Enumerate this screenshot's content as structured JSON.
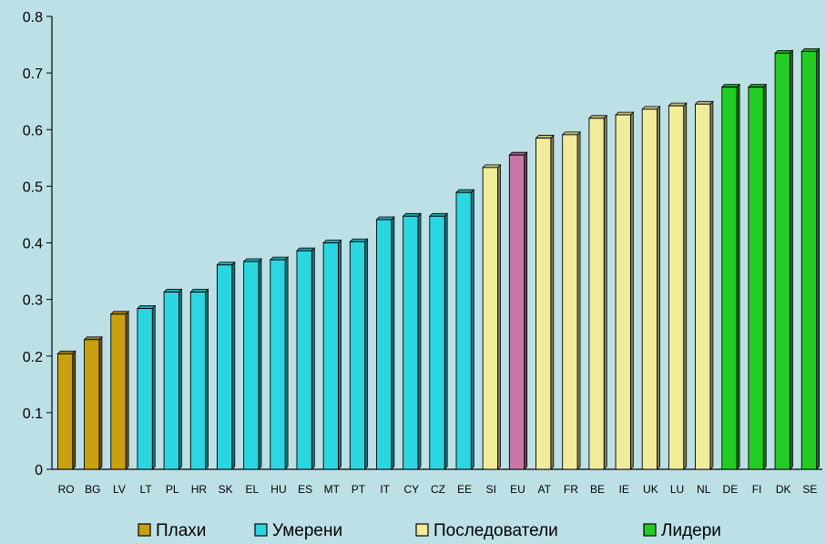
{
  "chart_data": {
    "type": "bar",
    "ylim": [
      0,
      0.8
    ],
    "y_ticks": [
      0,
      0.1,
      0.2,
      0.3,
      0.4,
      0.5,
      0.6,
      0.7,
      0.8
    ],
    "y_tick_labels": [
      "0",
      "0.1",
      "0.2",
      "0.3",
      "0.4",
      "0.5",
      "0.6",
      "0.7",
      "0.8"
    ],
    "grid": false,
    "legend_position": "bottom",
    "categories": [
      "RO",
      "BG",
      "LV",
      "LT",
      "PL",
      "HR",
      "SK",
      "EL",
      "HU",
      "ES",
      "MT",
      "PT",
      "IT",
      "CY",
      "CZ",
      "EE",
      "SI",
      "EU",
      "AT",
      "FR",
      "BE",
      "IE",
      "UK",
      "LU",
      "NL",
      "DE",
      "FI",
      "DK",
      "SE"
    ],
    "values": [
      0.204,
      0.229,
      0.274,
      0.284,
      0.313,
      0.313,
      0.361,
      0.367,
      0.37,
      0.386,
      0.4,
      0.402,
      0.441,
      0.447,
      0.447,
      0.489,
      0.533,
      0.555,
      0.585,
      0.591,
      0.62,
      0.626,
      0.636,
      0.642,
      0.645,
      0.675,
      0.675,
      0.735,
      0.738
    ],
    "groups": [
      "weak",
      "weak",
      "weak",
      "moderate",
      "moderate",
      "moderate",
      "moderate",
      "moderate",
      "moderate",
      "moderate",
      "moderate",
      "moderate",
      "moderate",
      "moderate",
      "moderate",
      "moderate",
      "follower",
      "eu",
      "follower",
      "follower",
      "follower",
      "follower",
      "follower",
      "follower",
      "follower",
      "leader",
      "leader",
      "leader",
      "leader"
    ],
    "group_colors": {
      "weak": "#c8a010",
      "moderate": "#2cd6e0",
      "follower": "#f0ec9c",
      "eu": "#c878a8",
      "leader": "#22cc22"
    },
    "legend": [
      {
        "label": "Плахи",
        "group": "weak"
      },
      {
        "label": "Умерени",
        "group": "moderate"
      },
      {
        "label": "Последователи",
        "group": "follower"
      },
      {
        "label": "Лидери",
        "group": "leader"
      }
    ]
  },
  "colors": {
    "background": "#bde0e6",
    "axis": "#000000"
  }
}
